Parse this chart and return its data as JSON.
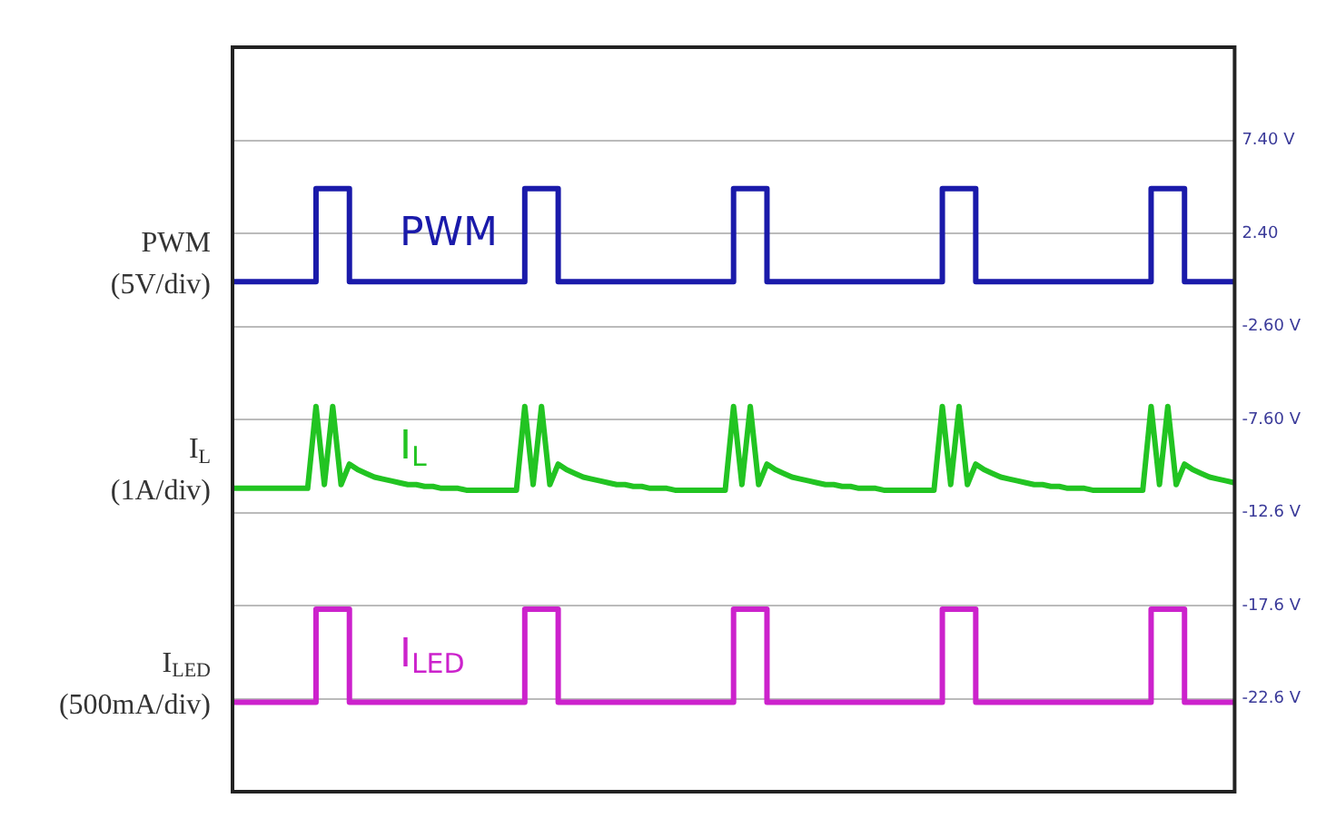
{
  "chart_data": {
    "type": "line",
    "categories": [
      null,
      null,
      null,
      null,
      null,
      null,
      null,
      null,
      null,
      null,
      null,
      null,
      null,
      null,
      null,
      null,
      null,
      null,
      null,
      null,
      null,
      null,
      null,
      null,
      null,
      null,
      null,
      null,
      null,
      null,
      null,
      null,
      null,
      null,
      null,
      null,
      null,
      null,
      null,
      null,
      null,
      null,
      null,
      null,
      null,
      null,
      null,
      null,
      null,
      null,
      null,
      null,
      null,
      null,
      null,
      null,
      null,
      null,
      null,
      null,
      null,
      null,
      null,
      null,
      null,
      null,
      null,
      null,
      null,
      null,
      null,
      null,
      null,
      null,
      null,
      null,
      null,
      null,
      null,
      null,
      null,
      null,
      null,
      null,
      null,
      null,
      null,
      null,
      null,
      null,
      null,
      null,
      null,
      null,
      null,
      null,
      null,
      null,
      null,
      null,
      null,
      null,
      null,
      null,
      null,
      null,
      null,
      null,
      null,
      null,
      null,
      null,
      null,
      null,
      null,
      null,
      null,
      null,
      null,
      null,
      null
    ],
    "series": [
      {
        "name": "PWM",
        "type": "step",
        "color": "#1a1aaa",
        "values": [
          -0.2,
          -0.2,
          -0.2,
          -0.2,
          -0.2,
          -0.2,
          -0.2,
          -0.2,
          -0.2,
          -0.2,
          4.8,
          4.8,
          4.8,
          4.8,
          -0.2,
          -0.2,
          -0.2,
          -0.2,
          -0.2,
          -0.2,
          -0.2,
          -0.2,
          -0.2,
          -0.2,
          -0.2,
          -0.2,
          -0.2,
          -0.2,
          -0.2,
          -0.2,
          -0.2,
          -0.2,
          -0.2,
          -0.2,
          -0.2,
          4.8,
          4.8,
          4.8,
          4.8,
          -0.2,
          -0.2,
          -0.2,
          -0.2,
          -0.2,
          -0.2,
          -0.2,
          -0.2,
          -0.2,
          -0.2,
          -0.2,
          -0.2,
          -0.2,
          -0.2,
          -0.2,
          -0.2,
          -0.2,
          -0.2,
          -0.2,
          -0.2,
          -0.2,
          4.8,
          4.8,
          4.8,
          4.8,
          -0.2,
          -0.2,
          -0.2,
          -0.2,
          -0.2,
          -0.2,
          -0.2,
          -0.2,
          -0.2,
          -0.2,
          -0.2,
          -0.2,
          -0.2,
          -0.2,
          -0.2,
          -0.2,
          -0.2,
          -0.2,
          -0.2,
          -0.2,
          -0.2,
          4.8,
          4.8,
          4.8,
          4.8,
          -0.2,
          -0.2,
          -0.2,
          -0.2,
          -0.2,
          -0.2,
          -0.2,
          -0.2,
          -0.2,
          -0.2,
          -0.2,
          -0.2,
          -0.2,
          -0.2,
          -0.2,
          -0.2,
          -0.2,
          -0.2,
          -0.2,
          -0.2,
          -0.2,
          4.8,
          4.8,
          4.8,
          4.8,
          -0.2,
          -0.2,
          -0.2,
          -0.2,
          -0.2,
          -0.2,
          -0.2
        ]
      },
      {
        "name": "I$_{L}$",
        "type": "line",
        "color": "#22c422",
        "values": [
          -11.3,
          -11.3,
          -11.3,
          -11.3,
          -11.3,
          -11.3,
          -11.3,
          -11.3,
          -11.3,
          -11.3,
          -6.9,
          -11.1,
          -6.9,
          -11.1,
          -10.0,
          -10.3,
          -10.5,
          -10.7,
          -10.8,
          -10.9,
          -11.0,
          -11.1,
          -11.1,
          -11.2,
          -11.2,
          -11.3,
          -11.3,
          -11.3,
          -11.4,
          -11.4,
          -11.4,
          -11.4,
          -11.4,
          -11.4,
          -11.4,
          -6.9,
          -11.1,
          -6.9,
          -11.1,
          -10.0,
          -10.3,
          -10.5,
          -10.7,
          -10.8,
          -10.9,
          -11.0,
          -11.1,
          -11.1,
          -11.2,
          -11.2,
          -11.3,
          -11.3,
          -11.3,
          -11.4,
          -11.4,
          -11.4,
          -11.4,
          -11.4,
          -11.4,
          -11.4,
          -6.9,
          -11.1,
          -6.9,
          -11.1,
          -10.0,
          -10.3,
          -10.5,
          -10.7,
          -10.8,
          -10.9,
          -11.0,
          -11.1,
          -11.1,
          -11.2,
          -11.2,
          -11.3,
          -11.3,
          -11.3,
          -11.4,
          -11.4,
          -11.4,
          -11.4,
          -11.4,
          -11.4,
          -11.4,
          -6.9,
          -11.1,
          -6.9,
          -11.1,
          -10.0,
          -10.3,
          -10.5,
          -10.7,
          -10.8,
          -10.9,
          -11.0,
          -11.1,
          -11.1,
          -11.2,
          -11.2,
          -11.3,
          -11.3,
          -11.3,
          -11.4,
          -11.4,
          -11.4,
          -11.4,
          -11.4,
          -11.4,
          -11.4,
          -6.9,
          -11.1,
          -6.9,
          -11.1,
          -10.0,
          -10.3,
          -10.5,
          -10.7,
          -10.8,
          -10.9,
          -11.0
        ]
      },
      {
        "name": "I$_{LED}$",
        "type": "step",
        "color": "#cc22cc",
        "values": [
          -22.8,
          -22.8,
          -22.8,
          -22.8,
          -22.8,
          -22.8,
          -22.8,
          -22.8,
          -22.8,
          -22.8,
          -17.8,
          -17.8,
          -17.8,
          -17.8,
          -22.8,
          -22.8,
          -22.8,
          -22.8,
          -22.8,
          -22.8,
          -22.8,
          -22.8,
          -22.8,
          -22.8,
          -22.8,
          -22.8,
          -22.8,
          -22.8,
          -22.8,
          -22.8,
          -22.8,
          -22.8,
          -22.8,
          -22.8,
          -22.8,
          -17.8,
          -17.8,
          -17.8,
          -17.8,
          -22.8,
          -22.8,
          -22.8,
          -22.8,
          -22.8,
          -22.8,
          -22.8,
          -22.8,
          -22.8,
          -22.8,
          -22.8,
          -22.8,
          -22.8,
          -22.8,
          -22.8,
          -22.8,
          -22.8,
          -22.8,
          -22.8,
          -22.8,
          -22.8,
          -17.8,
          -17.8,
          -17.8,
          -17.8,
          -22.8,
          -22.8,
          -22.8,
          -22.8,
          -22.8,
          -22.8,
          -22.8,
          -22.8,
          -22.8,
          -22.8,
          -22.8,
          -22.8,
          -22.8,
          -22.8,
          -22.8,
          -22.8,
          -22.8,
          -22.8,
          -22.8,
          -22.8,
          -22.8,
          -17.8,
          -17.8,
          -17.8,
          -17.8,
          -22.8,
          -22.8,
          -22.8,
          -22.8,
          -22.8,
          -22.8,
          -22.8,
          -22.8,
          -22.8,
          -22.8,
          -22.8,
          -22.8,
          -22.8,
          -22.8,
          -22.8,
          -22.8,
          -22.8,
          -22.8,
          -22.8,
          -22.8,
          -22.8,
          -17.8,
          -17.8,
          -17.8,
          -17.8,
          -22.8,
          -22.8,
          -22.8,
          -22.8,
          -22.8,
          -22.8,
          -22.8
        ]
      }
    ],
    "ylim": [
      -27.6,
      12.4
    ],
    "yticks": [
      {
        "value": 7.4,
        "label": "7.40 V"
      },
      {
        "value": 2.4,
        "label": "2.40"
      },
      {
        "value": -2.6,
        "label": "-2.60 V"
      },
      {
        "value": -7.6,
        "label": "-7.60 V"
      },
      {
        "value": -12.6,
        "label": "-12.6 V"
      },
      {
        "value": -17.6,
        "label": "-17.6 V"
      },
      {
        "value": -22.6,
        "label": "-22.6 V"
      }
    ],
    "annotations": [
      "PWM\n(5V/div)",
      "I$_{L}$\n(1A/div)",
      "I$_{LED}$\n(500mA/div)"
    ],
    "grid": "y",
    "tick_labels": "y",
    "legend": false
  }
}
